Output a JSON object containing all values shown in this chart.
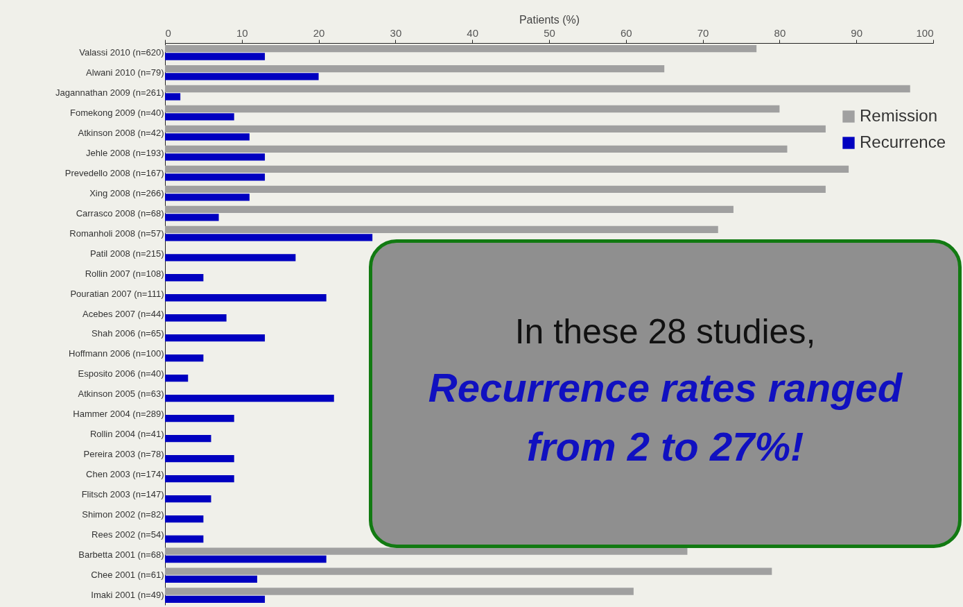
{
  "chart_data": {
    "type": "bar",
    "orientation": "horizontal",
    "xlabel": "Patients (%)",
    "categories": [
      "Valassi 2010 (n=620)",
      "Alwani 2010 (n=79)",
      "Jagannathan 2009 (n=261)",
      "Fomekong 2009 (n=40)",
      "Atkinson 2008 (n=42)",
      "Jehle 2008 (n=193)",
      "Prevedello 2008 (n=167)",
      "Xing 2008 (n=266)",
      "Carrasco 2008 (n=68)",
      "Romanholi 2008 (n=57)",
      "Patil 2008 (n=215)",
      "Rollin 2007 (n=108)",
      "Pouratian 2007 (n=111)",
      "Acebes 2007 (n=44)",
      "Shah 2006 (n=65)",
      "Hoffmann 2006 (n=100)",
      "Esposito 2006 (n=40)",
      "Atkinson 2005 (n=63)",
      "Hammer 2004 (n=289)",
      "Rollin 2004 (n=41)",
      "Pereira 2003 (n=78)",
      "Chen 2003 (n=174)",
      "Flitsch 2003 (n=147)",
      "Shimon 2002 (n=82)",
      "Rees 2002 (n=54)",
      "Barbetta 2001 (n=68)",
      "Chee 2001 (n=61)",
      "Imaki 2001 (n=49)"
    ],
    "series": [
      {
        "name": "Remission",
        "color": "#a0a0a0",
        "values": [
          77,
          65,
          97,
          80,
          86,
          81,
          89,
          86,
          74,
          72,
          null,
          null,
          null,
          null,
          null,
          null,
          null,
          null,
          null,
          null,
          null,
          null,
          null,
          null,
          null,
          68,
          79,
          61
        ]
      },
      {
        "name": "Recurrence",
        "color": "#0000c0",
        "values": [
          13,
          20,
          2,
          9,
          11,
          13,
          13,
          11,
          7,
          27,
          17,
          5,
          21,
          8,
          13,
          5,
          3,
          22,
          9,
          6,
          9,
          9,
          6,
          5,
          5,
          21,
          12,
          13
        ]
      }
    ],
    "xlim": [
      0,
      100
    ],
    "xticks": [
      0,
      10,
      20,
      30,
      40,
      50,
      60,
      70,
      80,
      90,
      100
    ],
    "legend": "top right",
    "annotations": [
      "In these 28 studies,",
      "Recurrence rates ranged from 2 to 27%!"
    ]
  }
}
